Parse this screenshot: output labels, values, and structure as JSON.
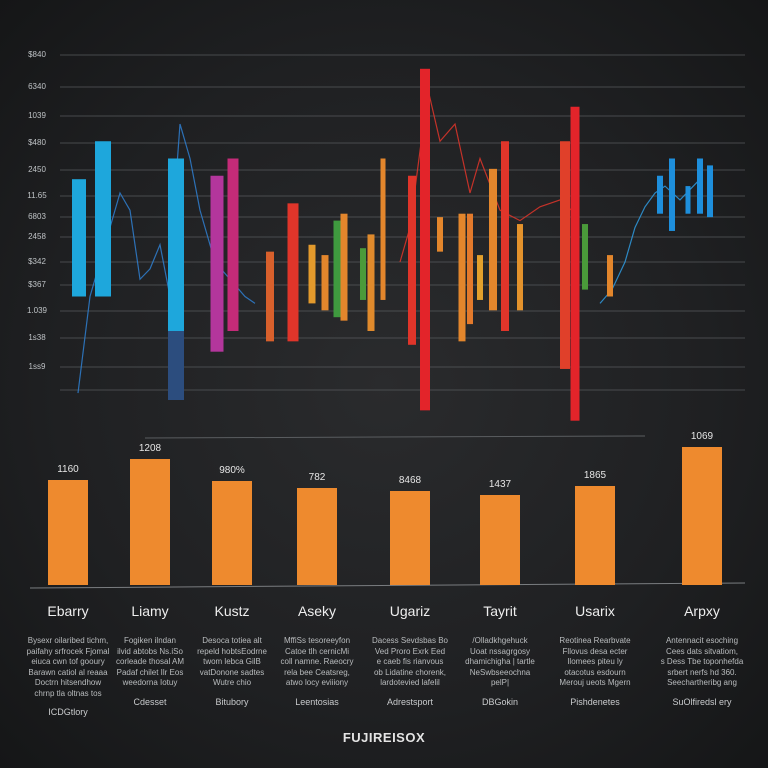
{
  "title": "FUJIREISOX",
  "chart_data": [
    {
      "type": "bar",
      "title": "",
      "ylabel": "",
      "ylim": [
        0,
        100
      ],
      "grid": true,
      "y_ticks": [
        "$840",
        "6340",
        "1039",
        "$480",
        "2450",
        "11.65",
        "6803",
        "2458",
        "$342",
        "$367",
        "1.039",
        "1s38",
        "1ss9"
      ],
      "floating_bars": [
        {
          "low": 30,
          "high": 64,
          "color": "#1ea7dc"
        },
        {
          "low": 30,
          "high": 75,
          "color": "#1ea7dc"
        },
        {
          "low": 20,
          "high": 70,
          "color": "#1ea7dc"
        },
        {
          "low": 0,
          "high": 20,
          "color": "#2c4d7e"
        },
        {
          "low": 14,
          "high": 65,
          "color": "#b3369c"
        },
        {
          "low": 20,
          "high": 70,
          "color": "#c42b78"
        },
        {
          "low": 17,
          "high": 57,
          "color": "#e0352a"
        },
        {
          "low": 17,
          "high": 43,
          "color": "#d8602c"
        },
        {
          "low": 28,
          "high": 45,
          "color": "#e39a2c"
        },
        {
          "low": 26,
          "high": 42,
          "color": "#e3862c"
        },
        {
          "low": 24,
          "high": 52,
          "color": "#3f9a3f"
        },
        {
          "low": 23,
          "high": 54,
          "color": "#e3862c"
        },
        {
          "low": 29,
          "high": 44,
          "color": "#4a9a3a"
        },
        {
          "low": 20,
          "high": 48,
          "color": "#e08a2c"
        },
        {
          "low": 29,
          "high": 70,
          "color": "#e3862c"
        },
        {
          "low": 16,
          "high": 65,
          "color": "#e0352a"
        },
        {
          "low": -3,
          "high": 96,
          "color": "#e3242a"
        },
        {
          "low": 43,
          "high": 53,
          "color": "#e3862c"
        },
        {
          "low": 17,
          "high": 54,
          "color": "#e3862c"
        },
        {
          "low": 22,
          "high": 54,
          "color": "#e37a2c"
        },
        {
          "low": 29,
          "high": 42,
          "color": "#e3a02c"
        },
        {
          "low": 26,
          "high": 67,
          "color": "#e3862c"
        },
        {
          "low": 20,
          "high": 75,
          "color": "#e0352a"
        },
        {
          "low": 26,
          "high": 51,
          "color": "#e3922c"
        },
        {
          "low": 9,
          "high": 75,
          "color": "#e0402a"
        },
        {
          "low": -6,
          "high": 85,
          "color": "#e3242a"
        },
        {
          "low": 32,
          "high": 51,
          "color": "#4a9a3a"
        },
        {
          "low": 30,
          "high": 42,
          "color": "#e3862c"
        },
        {
          "low": 54,
          "high": 65,
          "color": "#1e8fdc"
        },
        {
          "low": 49,
          "high": 70,
          "color": "#1e8fdc"
        },
        {
          "low": 54,
          "high": 62,
          "color": "#1e8fdc"
        },
        {
          "low": 54,
          "high": 70,
          "color": "#1e8fdc"
        },
        {
          "low": 53,
          "high": 68,
          "color": "#1e8fdc"
        }
      ],
      "lines": [
        {
          "color": "#2f7fd0",
          "values": [
            2,
            30,
            60,
            55,
            35,
            38,
            45,
            30,
            60,
            80,
            70,
            55,
            40,
            35,
            30,
            28
          ]
        },
        {
          "color": "#e0352a",
          "values": [
            40,
            50,
            90,
            75,
            80,
            60,
            70,
            55,
            52,
            56,
            58,
            54
          ]
        },
        {
          "color": "#2f9be0",
          "values": [
            28,
            32,
            40,
            50,
            56,
            60,
            62,
            58,
            64
          ]
        }
      ]
    },
    {
      "type": "bar",
      "categories": [
        "Ebarry",
        "Liamy",
        "Kustz",
        "Aseky",
        "Ugariz",
        "Tayrit",
        "Usarix",
        "Arpxy"
      ],
      "values": [
        105,
        126,
        104,
        97,
        94,
        90,
        99,
        138
      ],
      "value_labels": [
        "1160",
        "1208",
        "980%",
        "782",
        "8468",
        "1437",
        "1865",
        "1069"
      ],
      "color": "#ee8a2e"
    }
  ],
  "descriptions": [
    {
      "lines": [
        "Bysexr oilaribed tichm,",
        "paifahy srfrocek Fjomal",
        "eiuca cwn tof gooury",
        "Barawn catiol al reaaa",
        "Doctrn hitsendhow",
        "chrnp tla oltnas tos"
      ],
      "footer": "ICDGtlory"
    },
    {
      "lines": [
        "Fogiken ilndan",
        "ilvid abtobs Ns.iSo",
        "corleade thosal AM",
        "Padaf chilet Ilr Eos",
        "weedorna Iotuy"
      ],
      "footer": "Cdesset"
    },
    {
      "lines": [
        "Desoca totiea alt",
        "repeld hobtsEodrne",
        "twom lebca GilB",
        "vatDonone sadtes",
        "Wutre chio"
      ],
      "footer": "Bitubory"
    },
    {
      "lines": [
        "MffiSs tesoreeyfon",
        "Catoe tlh cernicMi",
        "coll namne. Raeocry",
        "rela bee Ceatsreg,",
        "atwo locy eviiiony"
      ],
      "footer": "Leentosias"
    },
    {
      "lines": [
        "Dacess Sevdsbas Bo",
        "Ved Proro Exrk Eed",
        "e caeb fis rianvous",
        "ob Lidatine chorenk,",
        "lardotevied lafelil"
      ],
      "footer": "Adrestsport"
    },
    {
      "lines": [
        "/Olladkhgehuck",
        "Uoat nssagrgosy",
        "dhamichigha | tartle",
        "NeSwbseeochna",
        "pelP|"
      ],
      "footer": "DBGokin"
    },
    {
      "lines": [
        "Reotinea Rearbvate",
        "Fllovus desa ecter",
        "Ilomees piteu ly",
        "otacotus esdourn",
        "Merouj ueots Mgern"
      ],
      "footer": "Pishdenetes"
    },
    {
      "lines": [
        "Antennacit esoching",
        "Cees dats sitvatiom,",
        "s Dess Tbe toponhefda",
        "srbert nerfs hd 360.",
        "Seechartheribg ang"
      ],
      "footer": "SuOlfiredsl ery"
    }
  ]
}
